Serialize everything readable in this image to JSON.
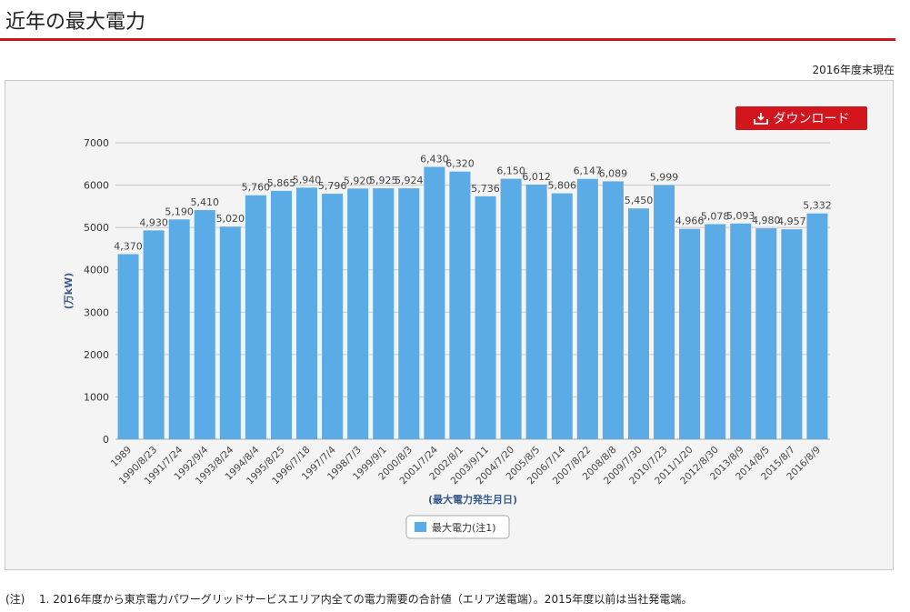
{
  "page": {
    "title": "近年の最大電力",
    "as_of": "2016年度末現在"
  },
  "download": {
    "label": "ダウンロード",
    "icon": "download-tray-icon"
  },
  "colors": {
    "accent": "#c8161d",
    "bar": "#5aabe6",
    "axis_label": "#3a5b8c"
  },
  "footnote": {
    "label": "(注)",
    "text": "1. 2016年度から東京電力パワーグリッドサービスエリア内全ての電力需要の合計値（エリア送電端）。2015年度以前は当社発電端。"
  },
  "chart_data": {
    "type": "bar",
    "title": "",
    "xlabel": "(最大電力発生月日)",
    "ylabel": "(万kW)",
    "ylim": [
      0,
      7000
    ],
    "yticks": [
      0,
      1000,
      2000,
      3000,
      4000,
      5000,
      6000,
      7000
    ],
    "grid": true,
    "legend_position": "bottom-center",
    "categories": [
      "1989",
      "1990/8/23",
      "1991/7/24",
      "1992/9/4",
      "1993/8/24",
      "1994/8/4",
      "1995/8/25",
      "1996/7/18",
      "1997/7/4",
      "1998/7/3",
      "1999/9/1",
      "2000/8/3",
      "2001/7/24",
      "2002/8/1",
      "2003/9/11",
      "2004/7/20",
      "2005/8/5",
      "2006/7/14",
      "2007/8/22",
      "2008/8/8",
      "2009/7/30",
      "2010/7/23",
      "2011/1/20",
      "2012/8/30",
      "2013/8/9",
      "2014/8/5",
      "2015/8/7",
      "2016/8/9"
    ],
    "series": [
      {
        "name": "最大電力(注1)",
        "values": [
          4370,
          4930,
          5190,
          5410,
          5020,
          5760,
          5865,
          5940,
          5796,
          5920,
          5925,
          5924,
          6430,
          6320,
          5736,
          6150,
          6012,
          5806,
          6147,
          6089,
          5450,
          5999,
          4966,
          5078,
          5093,
          4980,
          4957,
          5332
        ],
        "labels": [
          "4,370",
          "4,930",
          "5,190",
          "5,410",
          "5,020",
          "5,760",
          "5,865",
          "5,940",
          "5,796",
          "5,920",
          "5,925",
          "5,924",
          "6,430",
          "6,320",
          "5,736",
          "6,150",
          "6,012",
          "5,806",
          "6,147",
          "6,089",
          "5,450",
          "5,999",
          "4,966",
          "5,078",
          "5,093",
          "4,980",
          "4,957",
          "5,332"
        ]
      }
    ]
  }
}
